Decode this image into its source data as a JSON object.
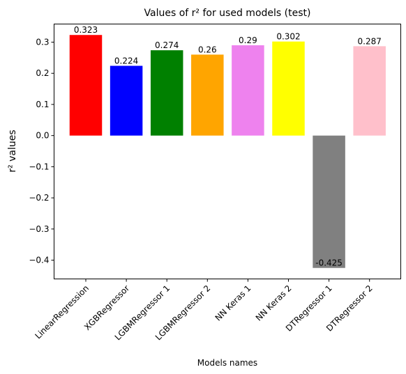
{
  "chart_data": {
    "type": "bar",
    "title": "Values of r² for used models (test)",
    "xlabel": "Models names",
    "ylabel": "r² values",
    "categories": [
      "LinearRegression",
      "XGBRegressor",
      "LGBMRegressor 1",
      "LGBMRegressor 2",
      "NN Keras 1",
      "NN Keras 2",
      "DTRegressor 1",
      "DTRegressor 2"
    ],
    "values": [
      0.323,
      0.224,
      0.274,
      0.26,
      0.29,
      0.302,
      -0.425,
      0.287
    ],
    "value_labels": [
      "0.323",
      "0.224",
      "0.274",
      "0.26",
      "0.29",
      "0.302",
      "-0.425",
      "0.287"
    ],
    "colors": [
      "#ff0000",
      "#0000ff",
      "#008000",
      "#ffa500",
      "#ee82ee",
      "#ffff00",
      "#808080",
      "#ffc0cb"
    ],
    "yticks": [
      -0.4,
      -0.3,
      -0.2,
      -0.1,
      0.0,
      0.1,
      0.2,
      0.3
    ],
    "ytick_labels": [
      "−0.4",
      "−0.3",
      "−0.2",
      "−0.1",
      "0.0",
      "0.1",
      "0.2",
      "0.3"
    ],
    "ylim": [
      -0.4603,
      0.3582
    ],
    "grid": false,
    "legend": "none"
  }
}
